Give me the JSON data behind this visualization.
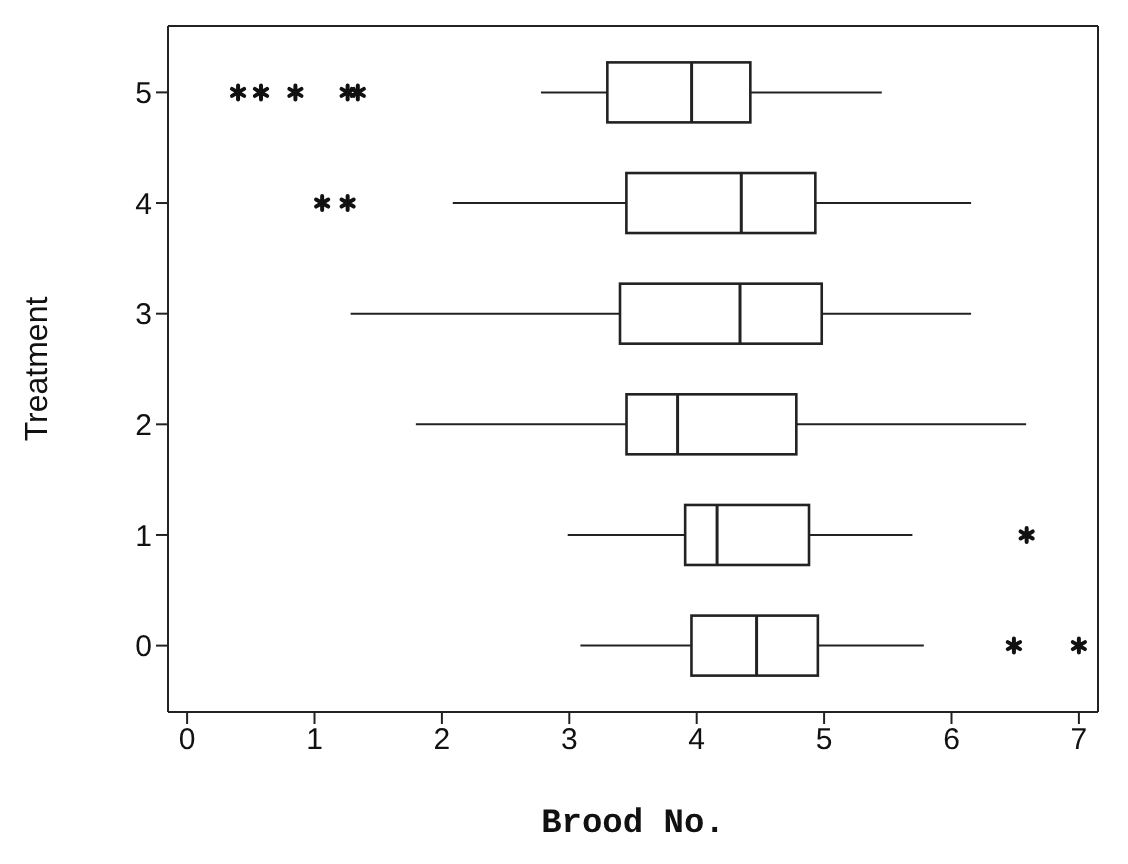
{
  "chart_data": {
    "type": "box",
    "orientation": "horizontal",
    "xlabel": "Brood No.",
    "ylabel": "Treatment",
    "categories": [
      "5",
      "4",
      "3",
      "2",
      "1",
      "0"
    ],
    "boxes": [
      {
        "low": 2.78,
        "q1": 3.3,
        "median": 3.96,
        "q3": 4.42,
        "high": 5.45,
        "outliers": [
          0.4,
          0.58,
          0.85,
          1.26,
          1.34
        ]
      },
      {
        "low": 2.09,
        "q1": 3.45,
        "median": 4.35,
        "q3": 4.93,
        "high": 6.15,
        "outliers": [
          1.06,
          1.26
        ]
      },
      {
        "low": 1.29,
        "q1": 3.4,
        "median": 4.34,
        "q3": 4.98,
        "high": 6.15
      },
      {
        "low": 1.8,
        "q1": 3.45,
        "median": 3.85,
        "q3": 4.78,
        "high": 6.58
      },
      {
        "low": 2.99,
        "q1": 3.91,
        "median": 4.16,
        "q3": 4.88,
        "high": 5.69,
        "outliers": [
          6.59
        ]
      },
      {
        "low": 3.09,
        "q1": 3.96,
        "median": 4.47,
        "q3": 4.95,
        "high": 5.78,
        "outliers": [
          6.49,
          7.0
        ]
      }
    ],
    "xlim": [
      -0.15,
      7.15
    ],
    "xticks": [
      0,
      1,
      2,
      3,
      4,
      5,
      6,
      7
    ],
    "grid": false,
    "legend": false
  }
}
